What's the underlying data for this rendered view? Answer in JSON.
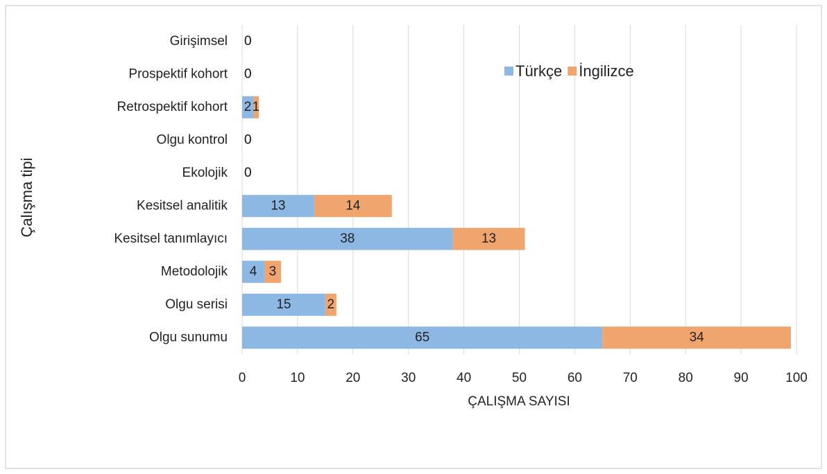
{
  "chart_data": {
    "type": "stacked_barh",
    "xlabel": "ÇALIŞMA SAYISI",
    "ylabel": "Çalışma tipi",
    "categories": [
      "Girişimsel",
      "Prospektif kohort",
      "Retrospektif kohort",
      "Olgu kontrol",
      "Ekolojik",
      "Kesitsel analitik",
      "Kesitsel tanımlayıcı",
      "Metodolojik",
      "Olgu serisi",
      "Olgu sunumu"
    ],
    "series": [
      {
        "name": "Türkçe",
        "color": "#8db8e3",
        "values": [
          0,
          0,
          2,
          0,
          0,
          13,
          38,
          4,
          15,
          65
        ]
      },
      {
        "name": "İngilizce",
        "color": "#f0a46e",
        "values": [
          0,
          0,
          1,
          0,
          0,
          14,
          13,
          3,
          2,
          34
        ]
      }
    ],
    "xlim": [
      0,
      100
    ],
    "xticks": [
      0,
      10,
      20,
      30,
      40,
      50,
      60,
      70,
      80,
      90,
      100
    ],
    "grid": true
  }
}
